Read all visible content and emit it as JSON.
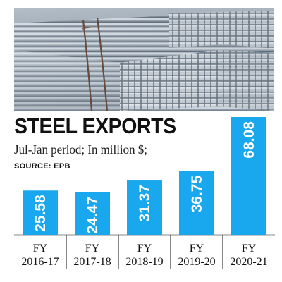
{
  "header": {
    "title": "STEEL EXPORTS",
    "subtitle": "Jul-Jan period; In million $;",
    "source": "SOURCE: EPB"
  },
  "colors": {
    "bar": "#19a8ee",
    "value_label": "#ffffff",
    "axis": "#111111",
    "text": "#111111"
  },
  "chart_data": {
    "type": "bar",
    "title": "STEEL EXPORTS",
    "subtitle": "Jul-Jan period; In million $;",
    "categories": [
      "FY 2016-17",
      "FY 2017-18",
      "FY 2018-19",
      "FY 2019-20",
      "FY 2020-21"
    ],
    "category_lines": [
      [
        "FY",
        "2016-17"
      ],
      [
        "FY",
        "2017-18"
      ],
      [
        "FY",
        "2018-19"
      ],
      [
        "FY",
        "2019-20"
      ],
      [
        "FY",
        "2020-21"
      ]
    ],
    "values": [
      25.58,
      24.47,
      31.37,
      36.75,
      68.08
    ],
    "value_labels": [
      "25.58",
      "24.47",
      "31.37",
      "36.75",
      "68.08"
    ],
    "unit": "million $",
    "ylim": [
      0,
      68.08
    ],
    "grid": false,
    "legend": "none",
    "data_labels": "inside-vertical"
  }
}
